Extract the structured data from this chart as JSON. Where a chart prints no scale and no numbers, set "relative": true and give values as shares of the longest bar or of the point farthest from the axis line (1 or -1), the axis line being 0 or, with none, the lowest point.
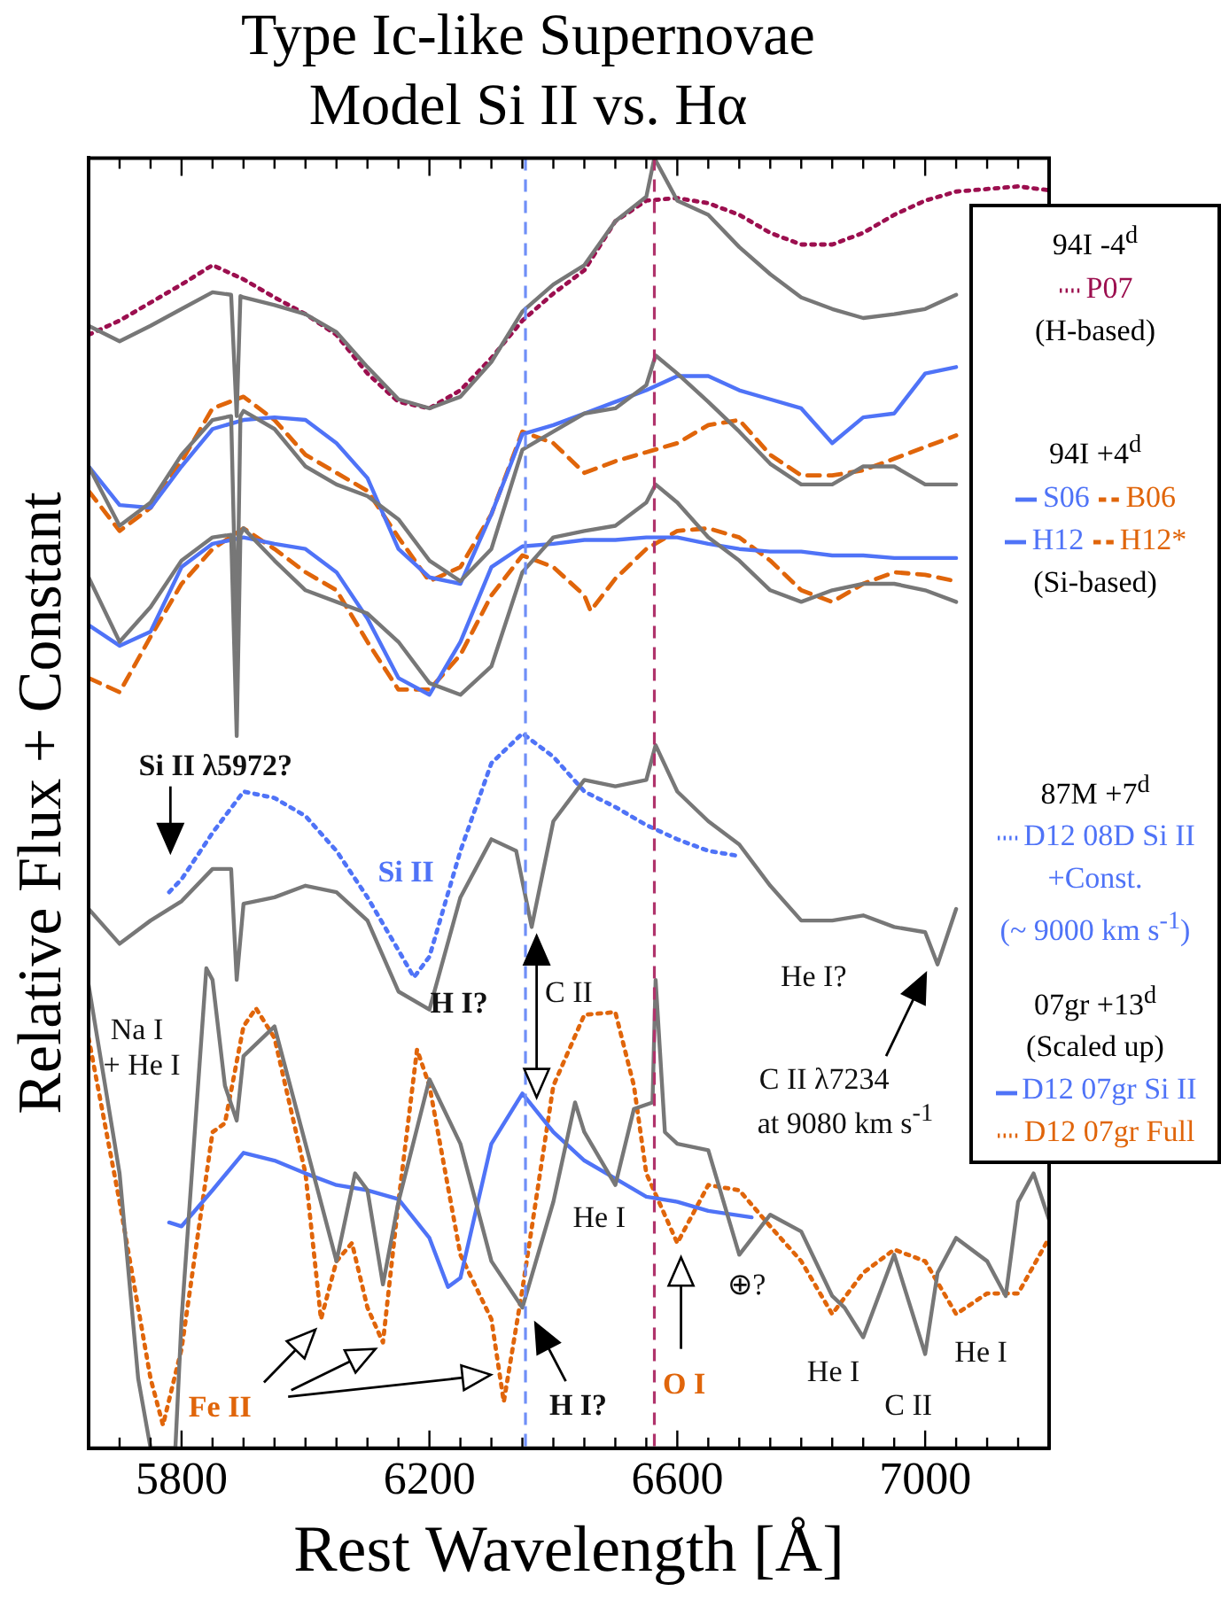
{
  "chart_data": {
    "type": "line",
    "title": "Type Ic-like Supernovae",
    "subtitle": "Model Si II vs. Hα",
    "xlabel": "Rest Wavelength [Å]",
    "ylabel": "Relative Flux + Constant",
    "relative": true,
    "legend": "right",
    "xlim": [
      5650,
      7200
    ],
    "xticks": [
      {
        "value": 5650,
        "label": null
      },
      {
        "value": 5700,
        "label": null
      },
      {
        "value": 5750,
        "label": null
      },
      5800,
      {
        "value": 5850,
        "label": null
      },
      {
        "value": 5900,
        "label": null
      },
      {
        "value": 5950,
        "label": null
      },
      {
        "value": 6000,
        "label": null
      },
      {
        "value": 6050,
        "label": null
      },
      {
        "value": 6100,
        "label": null
      },
      {
        "value": 6150,
        "label": null
      },
      6200,
      {
        "value": 6250,
        "label": null
      },
      {
        "value": 6300,
        "label": null
      },
      {
        "value": 6350,
        "label": null
      },
      {
        "value": 6400,
        "label": null
      },
      {
        "value": 6450,
        "label": null
      },
      {
        "value": 6500,
        "label": null
      },
      {
        "value": 6550,
        "label": null
      },
      6600,
      {
        "value": 6650,
        "label": null
      },
      {
        "value": 6700,
        "label": null
      },
      {
        "value": 6750,
        "label": null
      },
      {
        "value": 6800,
        "label": null
      },
      {
        "value": 6850,
        "label": null
      },
      {
        "value": 6900,
        "label": null
      },
      {
        "value": 6950,
        "label": null
      },
      7000,
      {
        "value": 7050,
        "label": null
      },
      {
        "value": 7100,
        "label": null
      },
      {
        "value": 7150,
        "label": null
      },
      {
        "value": 7200,
        "label": null
      }
    ],
    "ref_lines": [
      {
        "axis": "x",
        "value": 6355,
        "color": "#6f8ff7",
        "line_style": "dashed"
      },
      {
        "axis": "x",
        "value": 6563,
        "color": "#b0336b",
        "line_style": "dashed"
      }
    ],
    "series": [
      {
        "color": "#777777",
        "line_style": "solid",
        "x": [
          5650,
          5700,
          5750,
          5800,
          5850,
          5880,
          5889,
          5895,
          5900,
          5950,
          6000,
          6050,
          6100,
          6150,
          6200,
          6250,
          6300,
          6350,
          6400,
          6450,
          6500,
          6550,
          6563,
          6600,
          6650,
          6700,
          6750,
          6800,
          6850,
          6900,
          6950,
          7000,
          7050
        ],
        "values": [
          0.87,
          0.858,
          0.87,
          0.883,
          0.896,
          0.894,
          0.8,
          0.893,
          0.892,
          0.886,
          0.879,
          0.865,
          0.838,
          0.813,
          0.806,
          0.815,
          0.842,
          0.881,
          0.902,
          0.917,
          0.951,
          0.97,
          1,
          0.967,
          0.956,
          0.931,
          0.91,
          0.892,
          0.883,
          0.876,
          0.879,
          0.883,
          0.894
        ]
      },
      {
        "name": "P07",
        "color": "#9c0f4f",
        "line_style": "dotted",
        "x": [
          5650,
          5700,
          5750,
          5800,
          5850,
          5900,
          5950,
          6000,
          6050,
          6100,
          6150,
          6200,
          6250,
          6300,
          6350,
          6400,
          6450,
          6500,
          6550,
          6600,
          6650,
          6700,
          6750,
          6800,
          6850,
          6900,
          6950,
          7000,
          7050,
          7100,
          7150,
          7200
        ],
        "values": [
          0.863,
          0.874,
          0.888,
          0.902,
          0.917,
          0.906,
          0.892,
          0.879,
          0.863,
          0.833,
          0.811,
          0.806,
          0.82,
          0.845,
          0.874,
          0.895,
          0.913,
          0.951,
          0.967,
          0.969,
          0.965,
          0.956,
          0.942,
          0.933,
          0.933,
          0.942,
          0.956,
          0.967,
          0.974,
          0.976,
          0.978,
          0.975
        ]
      },
      {
        "color": "#777777",
        "line_style": "solid",
        "x": [
          5650,
          5700,
          5750,
          5800,
          5850,
          5880,
          5889,
          5895,
          5900,
          5950,
          6000,
          6050,
          6100,
          6150,
          6200,
          6250,
          6300,
          6350,
          6400,
          6450,
          6500,
          6550,
          6565,
          6600,
          6650,
          6700,
          6750,
          6800,
          6850,
          6900,
          6950,
          7000,
          7050
        ],
        "values": [
          0.761,
          0.715,
          0.733,
          0.77,
          0.797,
          0.8,
          0.62,
          0.8,
          0.804,
          0.79,
          0.761,
          0.747,
          0.738,
          0.72,
          0.688,
          0.672,
          0.697,
          0.774,
          0.788,
          0.802,
          0.806,
          0.824,
          0.847,
          0.833,
          0.811,
          0.788,
          0.763,
          0.747,
          0.747,
          0.761,
          0.761,
          0.747,
          0.747
        ]
      },
      {
        "name": "S06",
        "color": "#4f73f7",
        "line_style": "solid",
        "x": [
          5650,
          5700,
          5750,
          5800,
          5850,
          5900,
          5950,
          6000,
          6050,
          6100,
          6150,
          6200,
          6250,
          6300,
          6350,
          6400,
          6450,
          6500,
          6550,
          6600,
          6650,
          6700,
          6750,
          6800,
          6850,
          6900,
          6950,
          7000,
          7050
        ],
        "values": [
          0.761,
          0.731,
          0.729,
          0.761,
          0.79,
          0.797,
          0.799,
          0.797,
          0.779,
          0.752,
          0.697,
          0.675,
          0.67,
          0.724,
          0.786,
          0.793,
          0.802,
          0.811,
          0.82,
          0.831,
          0.831,
          0.82,
          0.813,
          0.806,
          0.779,
          0.799,
          0.802,
          0.833,
          0.838
        ]
      },
      {
        "name": "B06",
        "color": "#e0650a",
        "line_style": "dashed",
        "x": [
          5650,
          5700,
          5750,
          5800,
          5850,
          5900,
          5950,
          6000,
          6050,
          6100,
          6150,
          6200,
          6250,
          6300,
          6350,
          6400,
          6450,
          6500,
          6550,
          6600,
          6650,
          6700,
          6750,
          6800,
          6850,
          6900,
          6950,
          7000,
          7050
        ],
        "values": [
          0.742,
          0.711,
          0.729,
          0.765,
          0.806,
          0.815,
          0.797,
          0.77,
          0.756,
          0.742,
          0.706,
          0.672,
          0.683,
          0.724,
          0.788,
          0.779,
          0.756,
          0.765,
          0.772,
          0.779,
          0.793,
          0.797,
          0.77,
          0.754,
          0.754,
          0.758,
          0.767,
          0.776,
          0.785
        ]
      },
      {
        "color": "#777777",
        "line_style": "solid",
        "x": [
          5650,
          5700,
          5750,
          5800,
          5850,
          5880,
          5889,
          5895,
          5900,
          5950,
          6000,
          6050,
          6100,
          6150,
          6200,
          6250,
          6300,
          6350,
          6400,
          6450,
          6500,
          6550,
          6565,
          6600,
          6650,
          6700,
          6750,
          6800,
          6850,
          6900,
          6950,
          7000,
          7050
        ],
        "values": [
          0.675,
          0.625,
          0.652,
          0.688,
          0.706,
          0.708,
          0.552,
          0.708,
          0.713,
          0.688,
          0.665,
          0.656,
          0.647,
          0.625,
          0.593,
          0.584,
          0.606,
          0.679,
          0.706,
          0.711,
          0.715,
          0.733,
          0.747,
          0.733,
          0.706,
          0.688,
          0.665,
          0.656,
          0.665,
          0.67,
          0.67,
          0.665,
          0.656
        ]
      },
      {
        "name": "H12",
        "color": "#4f73f7",
        "line_style": "solid",
        "x": [
          5650,
          5700,
          5750,
          5800,
          5850,
          5900,
          5950,
          6000,
          6050,
          6100,
          6150,
          6200,
          6250,
          6300,
          6350,
          6400,
          6450,
          6500,
          6550,
          6600,
          6650,
          6700,
          6750,
          6800,
          6850,
          6900,
          6950,
          7000,
          7050
        ],
        "values": [
          0.638,
          0.622,
          0.633,
          0.683,
          0.701,
          0.706,
          0.701,
          0.697,
          0.679,
          0.643,
          0.597,
          0.584,
          0.625,
          0.683,
          0.699,
          0.701,
          0.704,
          0.704,
          0.706,
          0.706,
          0.701,
          0.697,
          0.695,
          0.695,
          0.692,
          0.692,
          0.69,
          0.69,
          0.69
        ]
      },
      {
        "name": "H12*",
        "color": "#e0650a",
        "line_style": "dashed",
        "x": [
          5650,
          5700,
          5750,
          5800,
          5850,
          5900,
          5950,
          6000,
          6050,
          6100,
          6150,
          6200,
          6250,
          6300,
          6350,
          6400,
          6450,
          6460,
          6500,
          6550,
          6600,
          6650,
          6700,
          6750,
          6800,
          6850,
          6900,
          6950,
          7000,
          7050
        ],
        "values": [
          0.597,
          0.586,
          0.629,
          0.67,
          0.697,
          0.713,
          0.697,
          0.679,
          0.665,
          0.625,
          0.588,
          0.588,
          0.615,
          0.661,
          0.692,
          0.683,
          0.661,
          0.649,
          0.674,
          0.697,
          0.711,
          0.713,
          0.706,
          0.688,
          0.665,
          0.656,
          0.67,
          0.679,
          0.677,
          0.672
        ]
      },
      {
        "color": "#777777",
        "line_style": "solid",
        "x": [
          5650,
          5700,
          5750,
          5800,
          5850,
          5880,
          5889,
          5900,
          5950,
          6000,
          6050,
          6100,
          6150,
          6200,
          6250,
          6300,
          6340,
          6365,
          6400,
          6450,
          6500,
          6550,
          6565,
          6600,
          6650,
          6700,
          6750,
          6800,
          6850,
          6900,
          6950,
          7000,
          7020,
          7050
        ],
        "values": [
          0.418,
          0.391,
          0.409,
          0.424,
          0.449,
          0.449,
          0.363,
          0.422,
          0.427,
          0.436,
          0.431,
          0.409,
          0.354,
          0.34,
          0.427,
          0.472,
          0.463,
          0.404,
          0.486,
          0.518,
          0.513,
          0.518,
          0.545,
          0.509,
          0.486,
          0.468,
          0.436,
          0.409,
          0.409,
          0.413,
          0.404,
          0.4,
          0.375,
          0.418
        ]
      },
      {
        "name": "D12 08D Si II",
        "color": "#4f73f7",
        "line_style": "dotted",
        "x": [
          5780,
          5800,
          5850,
          5900,
          5950,
          6000,
          6050,
          6100,
          6150,
          6175,
          6200,
          6250,
          6300,
          6350,
          6400,
          6450,
          6500,
          6550,
          6600,
          6650,
          6700
        ],
        "values": [
          0.431,
          0.441,
          0.477,
          0.509,
          0.504,
          0.49,
          0.463,
          0.427,
          0.386,
          0.365,
          0.381,
          0.463,
          0.531,
          0.554,
          0.536,
          0.509,
          0.497,
          0.483,
          0.472,
          0.463,
          0.459
        ]
      },
      {
        "color": "#777777",
        "line_style": "solid",
        "x": [
          5650,
          5700,
          5730,
          5750,
          5790,
          5800,
          5820,
          5840,
          5850,
          5870,
          5889,
          5900,
          5950,
          6000,
          6050,
          6080,
          6100,
          6125,
          6150,
          6200,
          6250,
          6300,
          6350,
          6400,
          6435,
          6450,
          6500,
          6530,
          6560,
          6565,
          6580,
          6600,
          6650,
          6700,
          6750,
          6800,
          6850,
          6870,
          6900,
          6950,
          7000,
          7020,
          7050,
          7100,
          7130,
          7150,
          7175,
          7200
        ],
        "values": [
          0.359,
          0.213,
          0.054,
          0,
          0,
          0.1,
          0.236,
          0.372,
          0.363,
          0.281,
          0.254,
          0.304,
          0.327,
          0.236,
          0.145,
          0.213,
          0.2,
          0.127,
          0.191,
          0.286,
          0.236,
          0.145,
          0.109,
          0.191,
          0.268,
          0.245,
          0.204,
          0.263,
          0.268,
          0.363,
          0.245,
          0.236,
          0.231,
          0.15,
          0.181,
          0.168,
          0.118,
          0.109,
          0.086,
          0.15,
          0.073,
          0.136,
          0.163,
          0.145,
          0.118,
          0.191,
          0.213,
          0.177
        ]
      },
      {
        "name": "D12 07gr Si II",
        "color": "#4f73f7",
        "line_style": "solid",
        "x": [
          5780,
          5800,
          5850,
          5900,
          5950,
          6000,
          6050,
          6100,
          6150,
          6200,
          6230,
          6250,
          6300,
          6350,
          6400,
          6450,
          6500,
          6550,
          6600,
          6650,
          6720
        ],
        "values": [
          0.175,
          0.172,
          0.2,
          0.229,
          0.223,
          0.213,
          0.204,
          0.2,
          0.193,
          0.163,
          0.125,
          0.132,
          0.236,
          0.275,
          0.245,
          0.223,
          0.209,
          0.195,
          0.191,
          0.184,
          0.179
        ]
      },
      {
        "name": "D12 07gr Full",
        "color": "#e0650a",
        "line_style": "dotted",
        "x": [
          5650,
          5700,
          5750,
          5770,
          5800,
          5850,
          5870,
          5900,
          5920,
          5950,
          6000,
          6025,
          6050,
          6075,
          6100,
          6125,
          6150,
          6180,
          6200,
          6250,
          6300,
          6320,
          6350,
          6400,
          6450,
          6500,
          6530,
          6550,
          6600,
          6650,
          6700,
          6750,
          6800,
          6850,
          6900,
          6950,
          7000,
          7050,
          7100,
          7150,
          7200
        ],
        "values": [
          0.318,
          0.191,
          0.054,
          0.018,
          0.077,
          0.245,
          0.252,
          0.327,
          0.341,
          0.318,
          0.213,
          0.1,
          0.145,
          0.159,
          0.109,
          0.082,
          0.191,
          0.309,
          0.281,
          0.15,
          0.1,
          0.036,
          0.123,
          0.281,
          0.336,
          0.338,
          0.281,
          0.213,
          0.159,
          0.204,
          0.2,
          0.172,
          0.145,
          0.104,
          0.136,
          0.154,
          0.145,
          0.104,
          0.12,
          0.12,
          0.163
        ]
      }
    ],
    "annotations": [
      "94I -4$^{d}$",
      "(H-based)",
      "94I +4$^{d}$",
      "(Si-based)",
      "87M +7$^{d}$",
      "+Const.",
      "(~ 9000 km s$^{-1}$)",
      "07gr +13$^{d}$",
      "(Scaled up)",
      "Si II λ5972?",
      "Si II",
      "H I?",
      "C II",
      "Na I",
      "+ He I",
      "He I?",
      "C II λ7234",
      "at 9080 km s$^{-1}$",
      "He I",
      "⊕?",
      "O I",
      "He I",
      "C II",
      "He I",
      "H I?",
      "Fe II"
    ]
  }
}
